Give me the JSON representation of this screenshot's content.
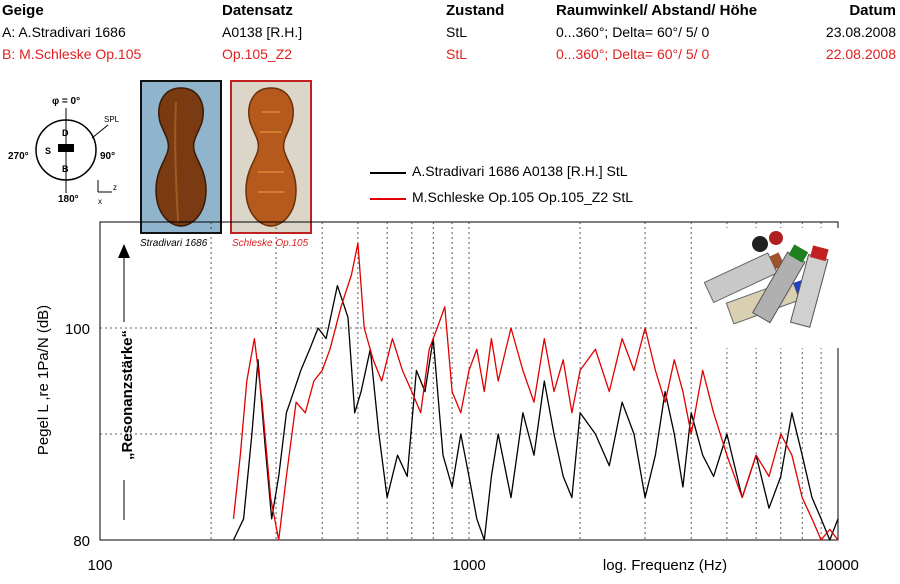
{
  "header": {
    "columns": [
      "Geige",
      "Datensatz",
      "Zustand",
      "Raumwinkel/ Abstand/ Höhe",
      "Datum"
    ],
    "row_a": [
      "A: A.Stradivari 1686",
      "A0138 [R.H.]",
      "StL",
      "0...360°; Delta= 60°/ 5/ 0",
      "23.08.2008"
    ],
    "row_b": [
      "B: M.Schleske Op.105",
      "Op.105_Z2",
      "StL",
      "0...360°; Delta= 60°/ 5/ 0",
      "22.08.2008"
    ]
  },
  "polar_diagram": {
    "top_label": "φ = 0°",
    "left_label": "270°",
    "right_label": "90°",
    "bottom_label": "180°",
    "d_label": "D",
    "s_label": "S",
    "b_label": "B",
    "spl_label": "SPL",
    "axis_z": "z",
    "axis_x": "x"
  },
  "photos": {
    "caption_a": "Stradivari 1686",
    "caption_b": "Schleske Op.105"
  },
  "colors": {
    "series_a": "#000000",
    "series_b": "#e00000",
    "grid": "#333333"
  },
  "chart_data": {
    "type": "line",
    "x_scale": "log",
    "xlim": [
      100,
      10000
    ],
    "ylim": [
      80,
      110
    ],
    "xlabel": "log. Frequenz (Hz)",
    "ylabel": "Pegel L ,re 1Pa/N (dB)",
    "y_annotation": "„Resonanzstärke“",
    "x_ticks": [
      100,
      1000,
      10000
    ],
    "x_tick_labels": [
      "100",
      "1000",
      "10000"
    ],
    "y_ticks": [
      80,
      100
    ],
    "y_tick_labels": [
      "80",
      "100"
    ],
    "grid": true,
    "legend_position": "top-center",
    "series": [
      {
        "name": "A.Stradivari 1686 A0138 [R.H.] StL",
        "x": [
          230,
          245,
          258,
          268,
          280,
          292,
          305,
          320,
          335,
          350,
          370,
          390,
          410,
          440,
          470,
          490,
          510,
          540,
          570,
          600,
          640,
          680,
          720,
          760,
          800,
          850,
          900,
          950,
          1000,
          1050,
          1100,
          1150,
          1200,
          1300,
          1400,
          1500,
          1600,
          1700,
          1800,
          1900,
          2000,
          2200,
          2400,
          2600,
          2800,
          3000,
          3200,
          3400,
          3600,
          3800,
          4000,
          4300,
          4600,
          5000,
          5500,
          6000,
          6500,
          7000,
          7500,
          8000,
          8500,
          9000,
          9500,
          10000
        ],
        "y": [
          80,
          82,
          90,
          97,
          89,
          82,
          86,
          92,
          94,
          96,
          98,
          100,
          99,
          104,
          101,
          92,
          94,
          98,
          90,
          84,
          88,
          86,
          96,
          94,
          99,
          88,
          85,
          90,
          86,
          82,
          80,
          86,
          90,
          84,
          92,
          88,
          95,
          90,
          86,
          84,
          92,
          90,
          87,
          93,
          90,
          84,
          88,
          94,
          90,
          85,
          92,
          88,
          86,
          90,
          84,
          88,
          83,
          86,
          92,
          88,
          84,
          82,
          80,
          82
        ]
      },
      {
        "name": "M.Schleske Op.105 Op.105_Z2 StL",
        "x": [
          230,
          240,
          250,
          262,
          275,
          290,
          305,
          320,
          340,
          360,
          380,
          400,
          420,
          450,
          480,
          500,
          520,
          550,
          580,
          620,
          660,
          700,
          740,
          780,
          820,
          860,
          900,
          950,
          1000,
          1050,
          1100,
          1150,
          1200,
          1300,
          1400,
          1500,
          1600,
          1700,
          1800,
          1900,
          2000,
          2200,
          2400,
          2600,
          2800,
          3000,
          3200,
          3400,
          3600,
          3800,
          4000,
          4300,
          4600,
          5000,
          5500,
          6000,
          6500,
          7000,
          7500,
          8000,
          8500,
          9000,
          9500,
          10000
        ],
        "y": [
          82,
          88,
          95,
          99,
          93,
          84,
          80,
          86,
          93,
          92,
          95,
          96,
          98,
          102,
          105,
          108,
          100,
          97,
          95,
          99,
          96,
          94,
          92,
          98,
          100,
          102,
          94,
          92,
          96,
          98,
          94,
          99,
          95,
          100,
          96,
          93,
          99,
          94,
          97,
          92,
          96,
          98,
          94,
          99,
          96,
          100,
          96,
          93,
          97,
          94,
          90,
          96,
          92,
          88,
          84,
          88,
          86,
          90,
          88,
          84,
          82,
          80,
          81,
          80
        ]
      }
    ]
  }
}
